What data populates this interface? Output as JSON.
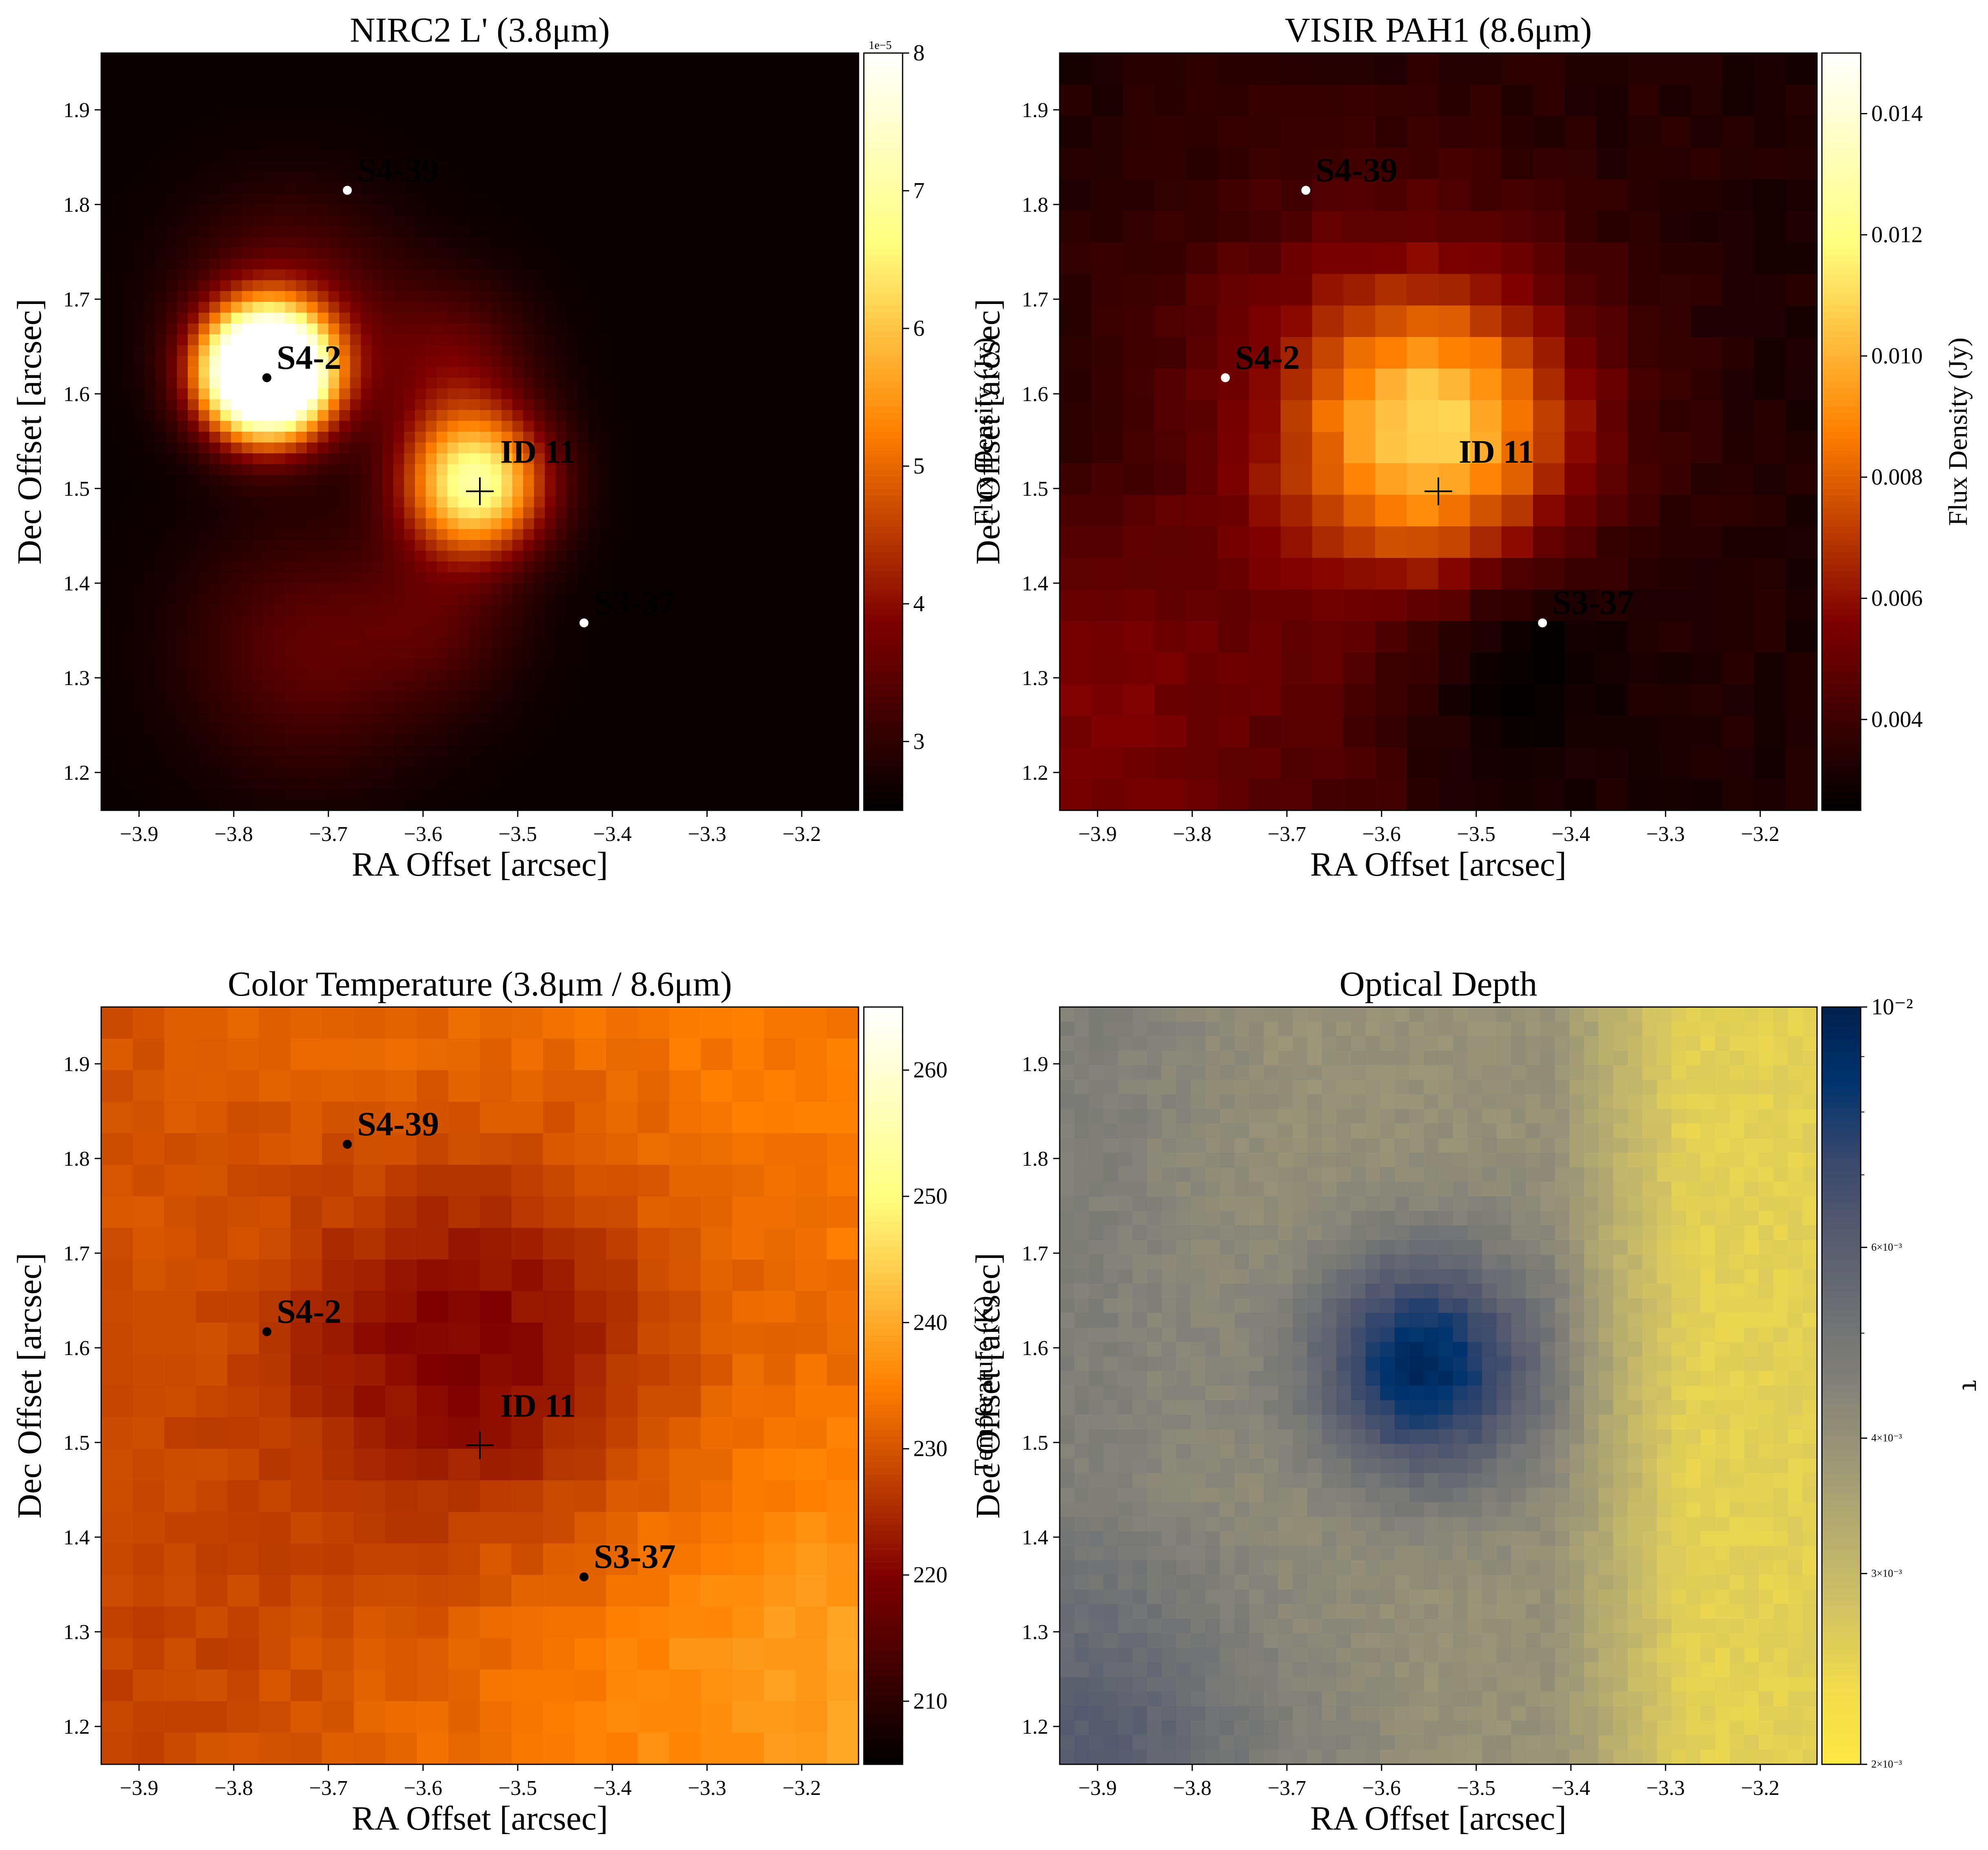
{
  "chart_data": [
    {
      "type": "heatmap",
      "title": "NIRC2 L' (3.8μm)",
      "xlabel": "RA Offset [arcsec]",
      "ylabel": "Dec Offset [arcsec]",
      "xlim": [
        -3.94,
        -3.14
      ],
      "ylim": [
        1.16,
        1.96
      ],
      "xticks": [
        -3.9,
        -3.8,
        -3.7,
        -3.6,
        -3.5,
        -3.4,
        -3.3,
        -3.2
      ],
      "xtick_labels": [
        "−3.9",
        "−3.8",
        "−3.7",
        "−3.6",
        "−3.5",
        "−3.4",
        "−3.3",
        "−3.2"
      ],
      "yticks": [
        1.2,
        1.3,
        1.4,
        1.5,
        1.6,
        1.7,
        1.8,
        1.9
      ],
      "ytick_labels": [
        "1.2",
        "1.3",
        "1.4",
        "1.5",
        "1.6",
        "1.7",
        "1.8",
        "1.9"
      ],
      "colormap": "afmhot",
      "colorbar": {
        "label": "Flux Density (Jy)",
        "scale": "linear",
        "range": [
          2.5,
          8
        ],
        "ticks": [
          3,
          4,
          5,
          6,
          7,
          8
        ],
        "tick_labels": [
          "3",
          "4",
          "5",
          "6",
          "7",
          "8"
        ],
        "offset_text": "1e−5"
      },
      "pixelated": false,
      "sources": [
        {
          "name": "S4-39",
          "x": -3.68,
          "y": 1.815,
          "color": "#ffffff"
        },
        {
          "name": "S4-2",
          "x": -3.765,
          "y": 1.617,
          "color": "#000000"
        },
        {
          "name": "S3-37",
          "x": -3.43,
          "y": 1.358,
          "color": "#ffffff"
        }
      ],
      "target": {
        "name": "ID 11",
        "x": -3.54,
        "y": 1.497,
        "color": "#ffffff"
      }
    },
    {
      "type": "heatmap",
      "title": "VISIR PAH1 (8.6μm)",
      "xlabel": "RA Offset [arcsec]",
      "ylabel": "Dec Offset [arcsec]",
      "xlim": [
        -3.94,
        -3.14
      ],
      "ylim": [
        1.16,
        1.96
      ],
      "xticks": [
        -3.9,
        -3.8,
        -3.7,
        -3.6,
        -3.5,
        -3.4,
        -3.3,
        -3.2
      ],
      "xtick_labels": [
        "−3.9",
        "−3.8",
        "−3.7",
        "−3.6",
        "−3.5",
        "−3.4",
        "−3.3",
        "−3.2"
      ],
      "yticks": [
        1.2,
        1.3,
        1.4,
        1.5,
        1.6,
        1.7,
        1.8,
        1.9
      ],
      "ytick_labels": [
        "1.2",
        "1.3",
        "1.4",
        "1.5",
        "1.6",
        "1.7",
        "1.8",
        "1.9"
      ],
      "colormap": "afmhot",
      "colorbar": {
        "label": "Flux Density (Jy)",
        "scale": "linear",
        "range": [
          0.0025,
          0.015
        ],
        "ticks": [
          0.004,
          0.006,
          0.008,
          0.01,
          0.012,
          0.014
        ],
        "tick_labels": [
          "0.004",
          "0.006",
          "0.008",
          "0.010",
          "0.012",
          "0.014"
        ]
      },
      "pixelated": true,
      "sources": [
        {
          "name": "S4-39",
          "x": -3.68,
          "y": 1.815,
          "color": "#ffffff"
        },
        {
          "name": "S4-2",
          "x": -3.765,
          "y": 1.617,
          "color": "#ffffff"
        },
        {
          "name": "S3-37",
          "x": -3.43,
          "y": 1.358,
          "color": "#ffffff"
        }
      ],
      "target": {
        "name": "ID 11",
        "x": -3.54,
        "y": 1.497,
        "color": "#ffffff"
      }
    },
    {
      "type": "heatmap",
      "title": "Color Temperature (3.8μm / 8.6μm)",
      "xlabel": "RA Offset [arcsec]",
      "ylabel": "Dec Offset [arcsec]",
      "xlim": [
        -3.94,
        -3.14
      ],
      "ylim": [
        1.16,
        1.96
      ],
      "xticks": [
        -3.9,
        -3.8,
        -3.7,
        -3.6,
        -3.5,
        -3.4,
        -3.3,
        -3.2
      ],
      "xtick_labels": [
        "−3.9",
        "−3.8",
        "−3.7",
        "−3.6",
        "−3.5",
        "−3.4",
        "−3.3",
        "−3.2"
      ],
      "yticks": [
        1.2,
        1.3,
        1.4,
        1.5,
        1.6,
        1.7,
        1.8,
        1.9
      ],
      "ytick_labels": [
        "1.2",
        "1.3",
        "1.4",
        "1.5",
        "1.6",
        "1.7",
        "1.8",
        "1.9"
      ],
      "colormap": "afmhot",
      "colorbar": {
        "label": "Temperature (K)",
        "scale": "linear",
        "range": [
          205,
          265
        ],
        "ticks": [
          210,
          220,
          230,
          240,
          250,
          260
        ],
        "tick_labels": [
          "210",
          "220",
          "230",
          "240",
          "250",
          "260"
        ]
      },
      "pixelated": true,
      "sources": [
        {
          "name": "S4-39",
          "x": -3.68,
          "y": 1.815,
          "color": "#000000"
        },
        {
          "name": "S4-2",
          "x": -3.765,
          "y": 1.617,
          "color": "#000000"
        },
        {
          "name": "S3-37",
          "x": -3.43,
          "y": 1.358,
          "color": "#000000"
        }
      ],
      "target": {
        "name": "ID 11",
        "x": -3.54,
        "y": 1.497,
        "color": "#000000"
      }
    },
    {
      "type": "heatmap",
      "title": "Optical Depth",
      "xlabel": "RA Offset [arcsec]",
      "ylabel": "Dec Offset [arcsec]",
      "xlim": [
        -3.94,
        -3.14
      ],
      "ylim": [
        1.16,
        1.96
      ],
      "xticks": [
        -3.9,
        -3.8,
        -3.7,
        -3.6,
        -3.5,
        -3.4,
        -3.3,
        -3.2
      ],
      "xtick_labels": [
        "−3.9",
        "−3.8",
        "−3.7",
        "−3.6",
        "−3.5",
        "−3.4",
        "−3.3",
        "−3.2"
      ],
      "yticks": [
        1.2,
        1.3,
        1.4,
        1.5,
        1.6,
        1.7,
        1.8,
        1.9
      ],
      "ytick_labels": [
        "1.2",
        "1.3",
        "1.4",
        "1.5",
        "1.6",
        "1.7",
        "1.8",
        "1.9"
      ],
      "colormap": "cividis_r",
      "colorbar": {
        "label": "τ",
        "scale": "log",
        "range": [
          0.002,
          0.01
        ],
        "ticks": [
          0.002,
          0.003,
          0.004,
          0.006,
          0.01
        ],
        "tick_labels": [
          "2×10⁻³",
          "3×10⁻³",
          "4×10⁻³",
          "6×10⁻³",
          "10⁻²"
        ],
        "minor_ticks": [
          0.005,
          0.007,
          0.008,
          0.009
        ]
      },
      "pixelated": true,
      "sources": [],
      "target": null
    }
  ]
}
